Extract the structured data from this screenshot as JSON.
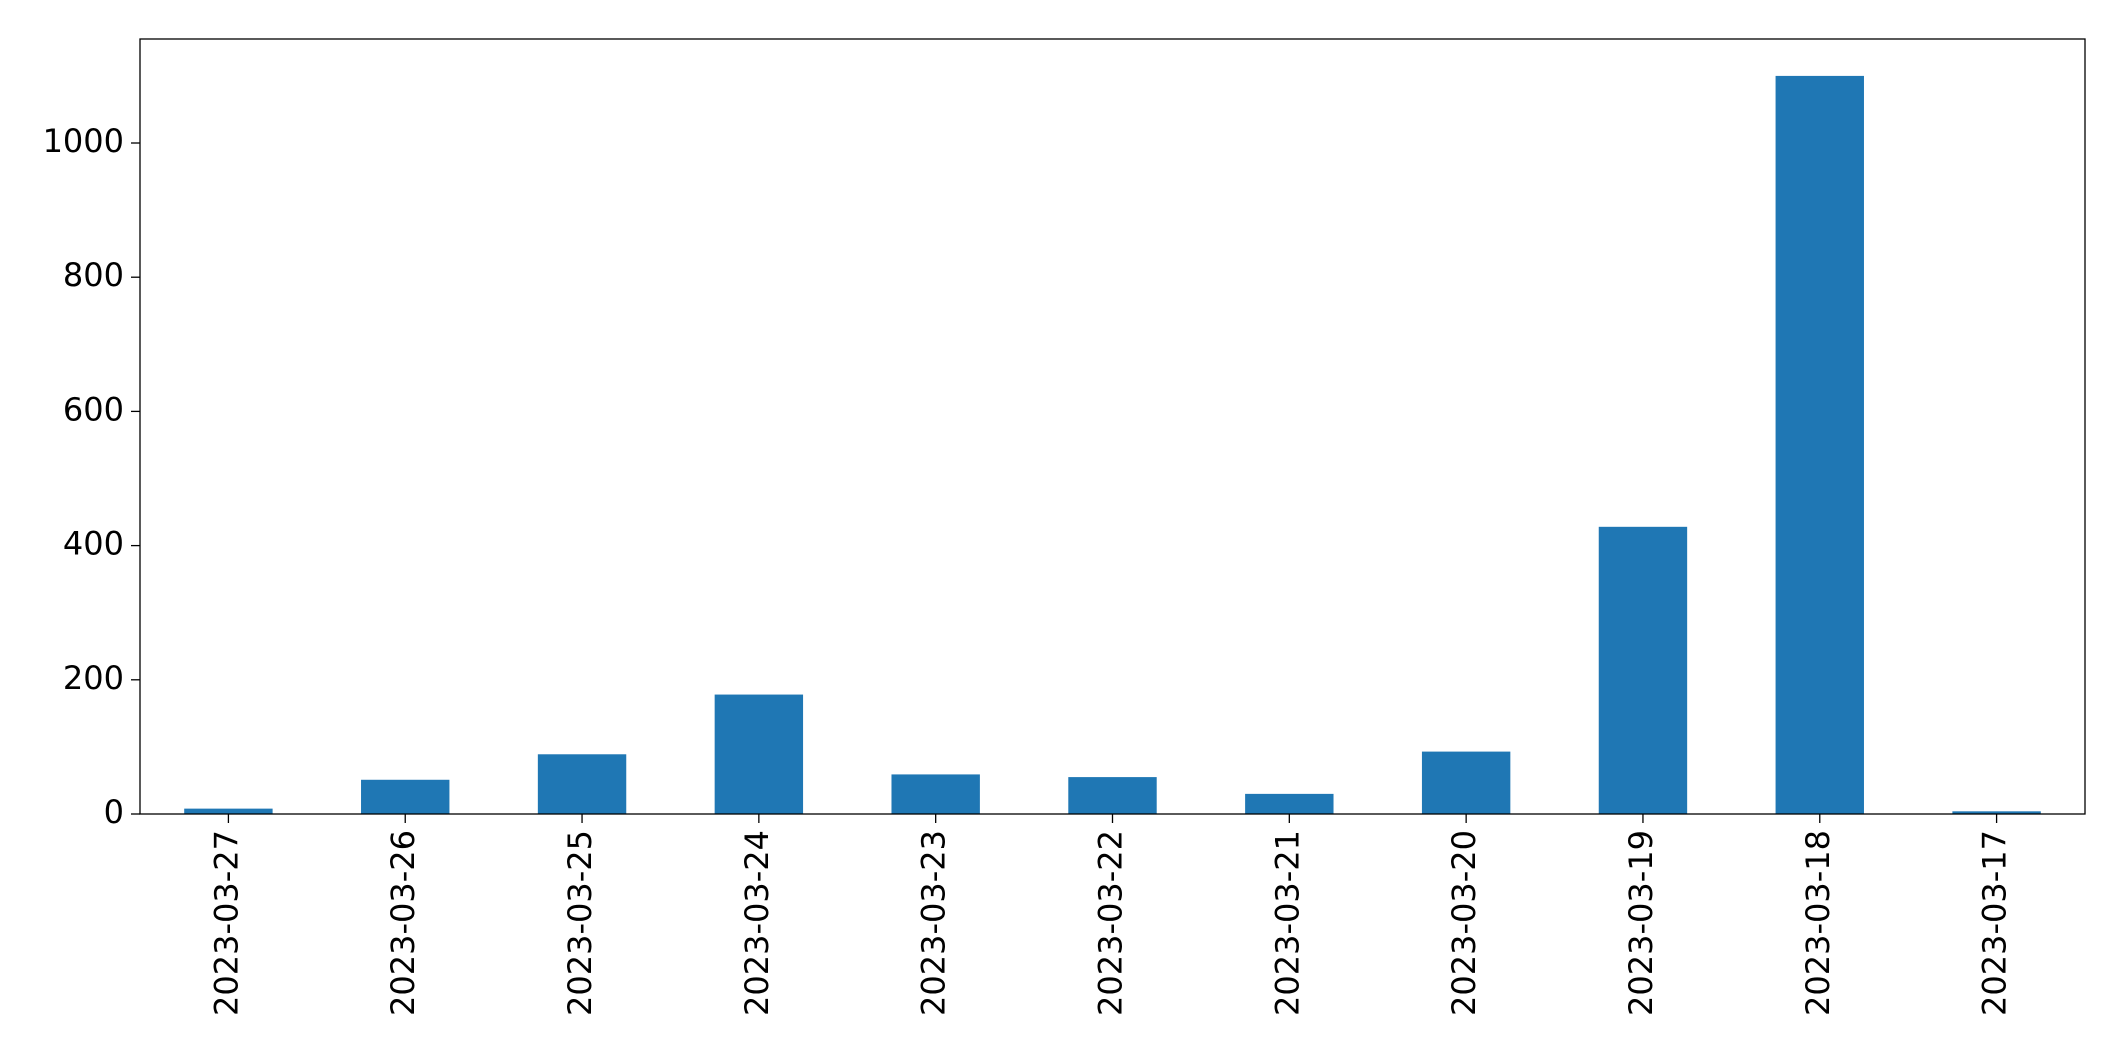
{
  "chart_data": {
    "type": "bar",
    "categories": [
      "2023-03-27",
      "2023-03-26",
      "2023-03-25",
      "2023-03-24",
      "2023-03-23",
      "2023-03-22",
      "2023-03-21",
      "2023-03-20",
      "2023-03-19",
      "2023-03-18",
      "2023-03-17"
    ],
    "values": [
      8,
      51,
      89,
      178,
      59,
      55,
      30,
      93,
      428,
      1100,
      4
    ],
    "color": "#1f77b4",
    "ylim": [
      0,
      1155
    ],
    "yticks": [
      0,
      200,
      400,
      600,
      800,
      1000
    ],
    "grid": false
  }
}
